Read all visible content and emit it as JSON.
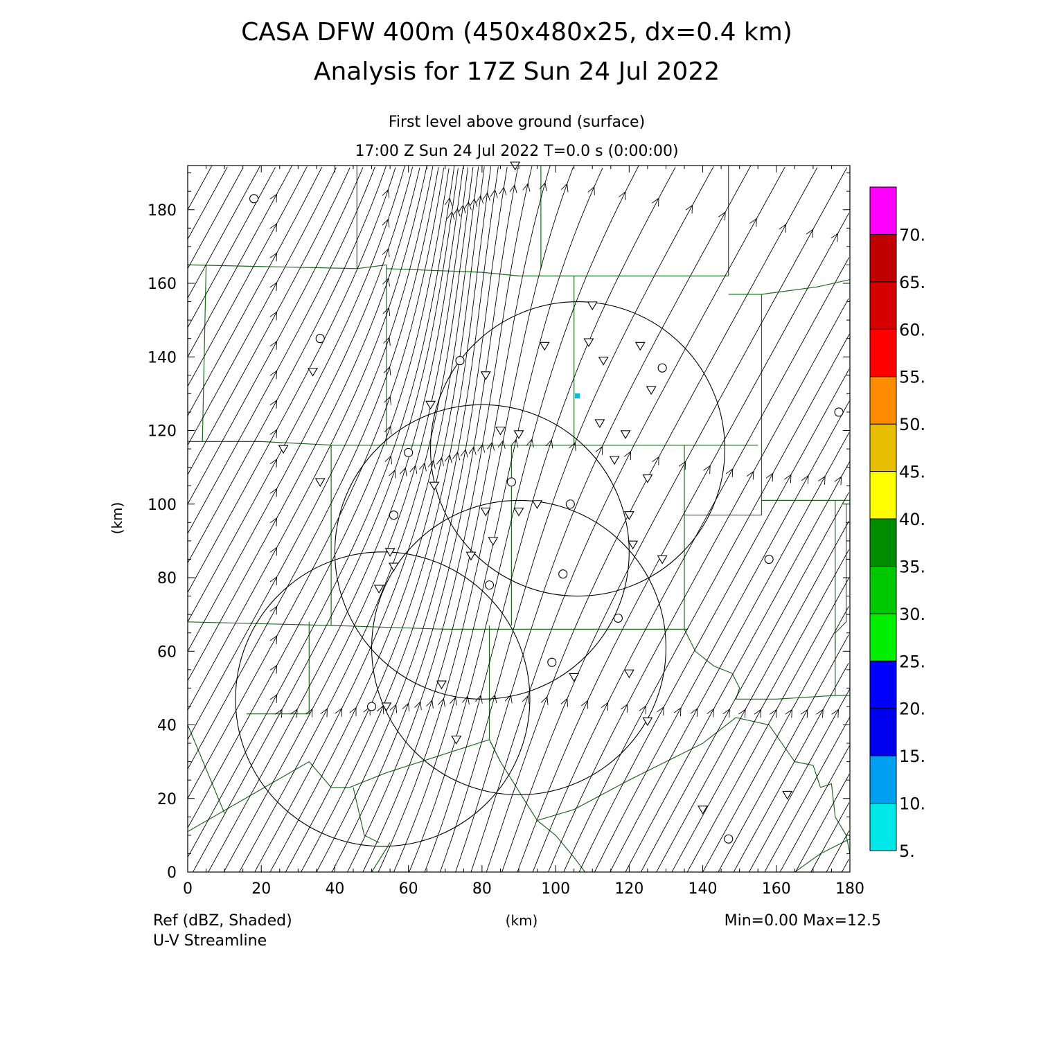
{
  "title_line1": "CASA DFW 400m (450x480x25, dx=0.4 km)",
  "title_line2": "Analysis for 17Z Sun 24 Jul 2022",
  "subtitle_line1": "First level above ground (surface)",
  "subtitle_line2": "17:00 Z Sun 24 Jul 2022    T=0.0 s (0:00:00)",
  "footer_left1": "Ref (dBZ, Shaded)",
  "footer_left2": "U-V Streamline",
  "footer_center": "(km)",
  "footer_right": "Min=0.00 Max=12.5",
  "colors": {
    "boundary": "#1e6b1e",
    "streamline": "#000000",
    "highlight": "#12b4d8"
  },
  "chart_data": {
    "type": "streamline",
    "xlabel": "(km)",
    "ylabel": "(km)",
    "xlim": [
      0,
      180
    ],
    "ylim": [
      0,
      192
    ],
    "x_ticks": [
      "0",
      "20",
      "40",
      "60",
      "80",
      "100",
      "120",
      "140",
      "160",
      "180"
    ],
    "y_ticks": [
      "0",
      "20",
      "40",
      "60",
      "80",
      "100",
      "120",
      "140",
      "160",
      "180"
    ],
    "colorbar": {
      "label": "Ref (dBZ)",
      "levels": [
        "5.",
        "10.",
        "15.",
        "20.",
        "25.",
        "30.",
        "35.",
        "40.",
        "45.",
        "50.",
        "55.",
        "60.",
        "65.",
        "70."
      ],
      "colors": [
        "#00e8e8",
        "#00a0f0",
        "#0000f0",
        "#0000ff",
        "#00ee00",
        "#00c800",
        "#008c00",
        "#ffff00",
        "#e8be00",
        "#ff8c00",
        "#ff0000",
        "#d70000",
        "#c00000",
        "#ff00ff"
      ]
    },
    "radar_range_rings": [
      {
        "center_km": [
          106,
          115
        ],
        "radius_km": 40
      },
      {
        "center_km": [
          80,
          87
        ],
        "radius_km": 40
      },
      {
        "center_km": [
          90,
          61
        ],
        "radius_km": 40
      },
      {
        "center_km": [
          53,
          47
        ],
        "radius_km": 40
      }
    ],
    "station_circles_km": [
      [
        18,
        183
      ],
      [
        36,
        145
      ],
      [
        74,
        139
      ],
      [
        60,
        114
      ],
      [
        56,
        97
      ],
      [
        88,
        106
      ],
      [
        104,
        100
      ],
      [
        102,
        81
      ],
      [
        82,
        78
      ],
      [
        117,
        69
      ],
      [
        99,
        57
      ],
      [
        50,
        45
      ],
      [
        129,
        137
      ],
      [
        177,
        125
      ],
      [
        158,
        85
      ],
      [
        147,
        9
      ]
    ],
    "station_triangles_km": [
      [
        89,
        192
      ],
      [
        34,
        136
      ],
      [
        36,
        106
      ],
      [
        26,
        115
      ],
      [
        66,
        127
      ],
      [
        81,
        135
      ],
      [
        97,
        143
      ],
      [
        110,
        154
      ],
      [
        109,
        144
      ],
      [
        113,
        139
      ],
      [
        123,
        143
      ],
      [
        126,
        131
      ],
      [
        112,
        122
      ],
      [
        119,
        119
      ],
      [
        85,
        120
      ],
      [
        90,
        119
      ],
      [
        67,
        105
      ],
      [
        116,
        112
      ],
      [
        125,
        107
      ],
      [
        95,
        100
      ],
      [
        90,
        98
      ],
      [
        81,
        98
      ],
      [
        120,
        97
      ],
      [
        83,
        90
      ],
      [
        121,
        89
      ],
      [
        77,
        86
      ],
      [
        55,
        87
      ],
      [
        56,
        83
      ],
      [
        129,
        85
      ],
      [
        52,
        77
      ],
      [
        69,
        51
      ],
      [
        105,
        53
      ],
      [
        120,
        54
      ],
      [
        54,
        45
      ],
      [
        125,
        41
      ],
      [
        73,
        36
      ],
      [
        140,
        17
      ],
      [
        163,
        21
      ]
    ],
    "reflectivity_max_dbz": 12.5,
    "reflectivity_min_dbz": 0.0
  }
}
